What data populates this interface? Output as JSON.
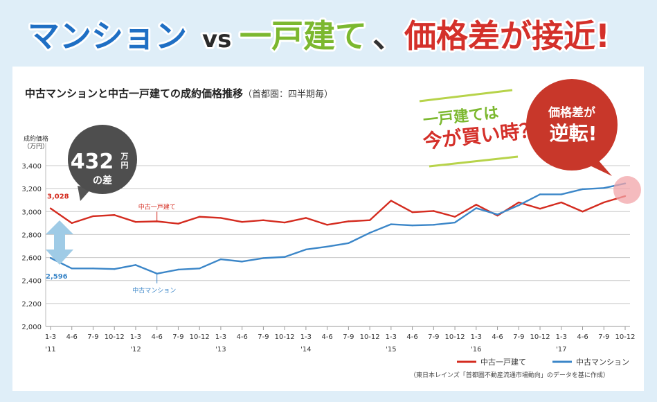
{
  "headline": {
    "part1": "マンション",
    "vs": "vs",
    "part2": "一戸建て",
    "comma": "、",
    "part3": "価格差が接近!"
  },
  "chart_title": {
    "main": "中古マンションと中古一戸建ての成約価格推移",
    "sub": "（首都圏：四半期毎）"
  },
  "callouts": {
    "diff_value": "432",
    "diff_unit_top": "万",
    "diff_unit_bottom": "円",
    "diff_suffix": "の差",
    "banner_line1": "一戸建ては",
    "banner_line2": "今が買い時？",
    "reverse_line1": "価格差が",
    "reverse_line2": "逆転!"
  },
  "source_note": "（東日本レインズ「首都圏不動産流通市場動向」のデータを基に作成）",
  "colors": {
    "house": "#d42b1f",
    "mansion": "#3b86c8",
    "headline_blue": "#1f6fc4",
    "headline_green": "#7cb82f",
    "headline_red": "#d4302a"
  },
  "chart_data": {
    "type": "line",
    "title": "中古マンションと中古一戸建ての成約価格推移",
    "subtitle": "（首都圏：四半期毎）",
    "ylabel": "成約価格（万円）",
    "ylim": [
      2000,
      3400
    ],
    "yticks": [
      "3,400",
      "3,200",
      "3,000",
      "2,800",
      "2,600",
      "2,400",
      "2,200",
      "2,000"
    ],
    "ytick_values": [
      3400,
      3200,
      3000,
      2800,
      2600,
      2400,
      2200,
      2000
    ],
    "grid": true,
    "legend": "bottom-right",
    "categories": [
      "1-3",
      "4-6",
      "7-9",
      "10-12",
      "1-3",
      "4-6",
      "7-9",
      "10-12",
      "1-3",
      "4-6",
      "7-9",
      "10-12",
      "1-3",
      "4-6",
      "7-9",
      "10-12",
      "1-3",
      "4-6",
      "7-9",
      "10-12",
      "1-3",
      "4-6",
      "7-9",
      "10-12",
      "1-3",
      "4-6",
      "7-9",
      "10-12"
    ],
    "year_labels": [
      "'11",
      "'12",
      "'13",
      "'14",
      "'15",
      "'16",
      "'17"
    ],
    "series": [
      {
        "name": "中古一戸建て",
        "color": "#d42b1f",
        "values": [
          3028,
          2900,
          2960,
          2970,
          2910,
          2915,
          2895,
          2955,
          2945,
          2910,
          2925,
          2905,
          2945,
          2885,
          2915,
          2925,
          3095,
          2995,
          3005,
          2955,
          3060,
          2965,
          3080,
          3025,
          3080,
          3000,
          3080,
          3135
        ]
      },
      {
        "name": "中古マンション",
        "color": "#3b86c8",
        "values": [
          2596,
          2505,
          2505,
          2500,
          2535,
          2460,
          2495,
          2505,
          2585,
          2565,
          2595,
          2605,
          2670,
          2695,
          2725,
          2815,
          2890,
          2880,
          2885,
          2905,
          3030,
          2975,
          3055,
          3150,
          3150,
          3195,
          3205,
          3245
        ]
      }
    ],
    "annotations": {
      "house_first": "3,028",
      "mansion_first": "2,596",
      "house_label": "中古一戸建て",
      "mansion_label": "中古マンション"
    }
  }
}
